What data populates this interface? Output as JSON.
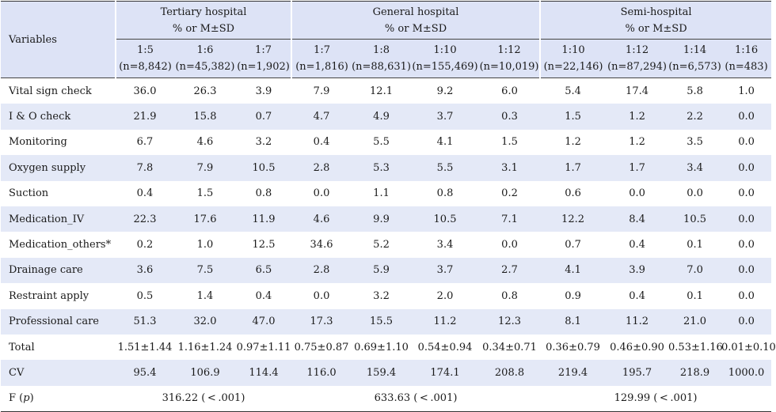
{
  "header": {
    "variables_label": "Variables",
    "groups": [
      {
        "title": "Tertiary hospital",
        "stat": "% or M±SD"
      },
      {
        "title": "General hospital",
        "stat": "% or M±SD"
      },
      {
        "title": "Semi-hospital",
        "stat": "% or M±SD"
      }
    ],
    "columns": [
      {
        "ratio": "1:5",
        "n": "(n=8,842)"
      },
      {
        "ratio": "1:6",
        "n": "(n=45,382)"
      },
      {
        "ratio": "1:7",
        "n": "(n=1,902)"
      },
      {
        "ratio": "1:7",
        "n": "(n=1,816)"
      },
      {
        "ratio": "1:8",
        "n": "(n=88,631)"
      },
      {
        "ratio": "1:10",
        "n": "(n=155,469)"
      },
      {
        "ratio": "1:12",
        "n": "(n=10,019)"
      },
      {
        "ratio": "1:10",
        "n": "(n=22,146)"
      },
      {
        "ratio": "1:12",
        "n": "(n=87,294)"
      },
      {
        "ratio": "1:14",
        "n": "(n=6,573)"
      },
      {
        "ratio": "1:16",
        "n": "(n=483)"
      }
    ]
  },
  "rows": [
    {
      "label": "Vital sign check",
      "values": [
        "36.0",
        "26.3",
        "3.9",
        "7.9",
        "12.1",
        "9.2",
        "6.0",
        "5.4",
        "17.4",
        "5.8",
        "1.0"
      ]
    },
    {
      "label": "I & O check",
      "values": [
        "21.9",
        "15.8",
        "0.7",
        "4.7",
        "4.9",
        "3.7",
        "0.3",
        "1.5",
        "1.2",
        "2.2",
        "0.0"
      ]
    },
    {
      "label": "Monitoring",
      "values": [
        "6.7",
        "4.6",
        "3.2",
        "0.4",
        "5.5",
        "4.1",
        "1.5",
        "1.2",
        "1.2",
        "3.5",
        "0.0"
      ]
    },
    {
      "label": "Oxygen supply",
      "values": [
        "7.8",
        "7.9",
        "10.5",
        "2.8",
        "5.3",
        "5.5",
        "3.1",
        "1.7",
        "1.7",
        "3.4",
        "0.0"
      ]
    },
    {
      "label": "Suction",
      "values": [
        "0.4",
        "1.5",
        "0.8",
        "0.0",
        "1.1",
        "0.8",
        "0.2",
        "0.6",
        "0.0",
        "0.0",
        "0.0"
      ]
    },
    {
      "label": "Medication_IV",
      "values": [
        "22.3",
        "17.6",
        "11.9",
        "4.6",
        "9.9",
        "10.5",
        "7.1",
        "12.2",
        "8.4",
        "10.5",
        "0.0"
      ]
    },
    {
      "label": "Medication_others*",
      "values": [
        "0.2",
        "1.0",
        "12.5",
        "34.6",
        "5.2",
        "3.4",
        "0.0",
        "0.7",
        "0.4",
        "0.1",
        "0.0"
      ]
    },
    {
      "label": "Drainage care",
      "values": [
        "3.6",
        "7.5",
        "6.5",
        "2.8",
        "5.9",
        "3.7",
        "2.7",
        "4.1",
        "3.9",
        "7.0",
        "0.0"
      ]
    },
    {
      "label": "Restraint apply",
      "values": [
        "0.5",
        "1.4",
        "0.4",
        "0.0",
        "3.2",
        "2.0",
        "0.8",
        "0.9",
        "0.4",
        "0.1",
        "0.0"
      ]
    },
    {
      "label": "Professional care",
      "values": [
        "51.3",
        "32.0",
        "47.0",
        "17.3",
        "15.5",
        "11.2",
        "12.3",
        "8.1",
        "11.2",
        "21.0",
        "0.0"
      ]
    },
    {
      "label": "Total",
      "values": [
        "1.51±1.44",
        "1.16±1.24",
        "0.97±1.11",
        "0.75±0.87",
        "0.69±1.10",
        "0.54±0.94",
        "0.34±0.71",
        "0.36±0.79",
        "0.46±0.90",
        "0.53±1.16",
        "0.01±0.10"
      ]
    },
    {
      "label": "CV",
      "values": [
        "95.4",
        "106.9",
        "114.4",
        "116.0",
        "159.4",
        "174.1",
        "208.8",
        "219.4",
        "195.7",
        "218.9",
        "1000.0"
      ]
    }
  ],
  "f_row": {
    "label_prefix": "F (",
    "label_italic": "p",
    "label_suffix": ")",
    "values": [
      "316.22 ( < .001)",
      "633.63 ( < .001)",
      "129.99 ( < .001)"
    ]
  },
  "colors": {
    "header_bg": "#dde3f6",
    "alt_row_bg": "#e4e9f7"
  }
}
